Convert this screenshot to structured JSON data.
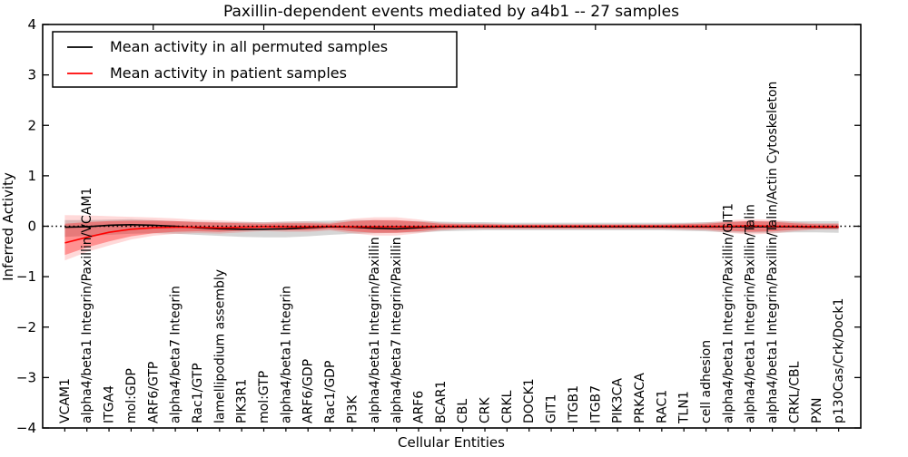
{
  "title": "Paxillin-dependent events mediated by a4b1 -- 27 samples",
  "axes": {
    "ylabel": "Inferred Activity",
    "xlabel": "Cellular Entities",
    "yticks": [
      4,
      3,
      2,
      1,
      0,
      -1,
      -2,
      -3,
      -4
    ]
  },
  "legend": {
    "items": [
      {
        "label": "Mean activity in all permuted samples",
        "color": "#000000"
      },
      {
        "label": "Mean activity in patient samples",
        "color": "#ff0000"
      }
    ]
  },
  "colors": {
    "permuted_line": "#000000",
    "patient_line": "#ff0000",
    "permuted_band": "rgba(0,0,0,0.16)",
    "patient_band_inner": "rgba(255,0,0,0.33)",
    "patient_band_outer": "rgba(255,0,0,0.15)",
    "zero_line": "#000000",
    "frame": "#000000"
  },
  "chart_data": {
    "type": "line",
    "title": "Paxillin-dependent events mediated by a4b1 -- 27 samples",
    "xlabel": "Cellular Entities",
    "ylabel": "Inferred Activity",
    "ylim": [
      -4,
      4
    ],
    "grid": false,
    "legend_position": "upper-left",
    "zero_line": true,
    "categories": [
      "VCAM1",
      "alpha4/beta1 Integrin/Paxillin/VCAM1",
      "ITGA4",
      "mol:GDP",
      "ARF6/GTP",
      "alpha4/beta7 Integrin",
      "Rac1/GTP",
      "lamellipodium assembly",
      "PIK3R1",
      "mol:GTP",
      "alpha4/beta1 Integrin",
      "ARF6/GDP",
      "Rac1/GDP",
      "PI3K",
      "alpha4/beta1 Integrin/Paxillin",
      "alpha4/beta7 Integrin/Paxillin",
      "ARF6",
      "BCAR1",
      "CBL",
      "CRK",
      "CRKL",
      "DOCK1",
      "GIT1",
      "ITGB1",
      "ITGB7",
      "PIK3CA",
      "PRKACA",
      "RAC1",
      "TLN1",
      "cell adhesion",
      "alpha4/beta1 Integrin/Paxillin/GIT1",
      "alpha4/beta1 Integrin/Paxillin/Talin",
      "alpha4/beta1 Integrin/Paxillin/Talin/Actin Cytoskeleton",
      "CRKL/CBL",
      "PXN",
      "p130Cas/Crk/Dock1"
    ],
    "series": [
      {
        "name": "Mean activity in all permuted samples",
        "color": "#000000",
        "values": [
          -0.02,
          -0.01,
          0.02,
          0.03,
          0.02,
          0.0,
          -0.03,
          -0.05,
          -0.06,
          -0.06,
          -0.05,
          -0.03,
          -0.01,
          -0.02,
          -0.04,
          -0.05,
          -0.03,
          -0.01,
          -0.01,
          -0.01,
          -0.01,
          -0.01,
          -0.01,
          -0.01,
          -0.01,
          -0.01,
          -0.01,
          -0.01,
          -0.01,
          -0.01,
          -0.01,
          -0.01,
          -0.01,
          -0.01,
          -0.02,
          -0.02
        ]
      },
      {
        "name": "Mean activity in patient samples",
        "color": "#ff0000",
        "values": [
          -0.33,
          -0.22,
          -0.12,
          -0.06,
          -0.03,
          -0.02,
          -0.02,
          -0.03,
          -0.02,
          -0.01,
          -0.01,
          -0.01,
          0.0,
          -0.01,
          -0.01,
          -0.01,
          -0.01,
          0.0,
          0.0,
          0.0,
          0.0,
          0.0,
          0.0,
          0.0,
          0.0,
          0.0,
          0.0,
          0.0,
          0.0,
          0.0,
          0.0,
          0.01,
          0.0,
          0.0,
          -0.01,
          -0.01
        ]
      }
    ],
    "bands": [
      {
        "name": "permuted-std-band",
        "lo": [
          -0.21,
          -0.19,
          -0.17,
          -0.15,
          -0.14,
          -0.15,
          -0.17,
          -0.19,
          -0.21,
          -0.22,
          -0.22,
          -0.2,
          -0.17,
          -0.15,
          -0.14,
          -0.13,
          -0.12,
          -0.1,
          -0.09,
          -0.08,
          -0.08,
          -0.08,
          -0.08,
          -0.08,
          -0.08,
          -0.08,
          -0.08,
          -0.08,
          -0.09,
          -0.1,
          -0.12,
          -0.13,
          -0.13,
          -0.12,
          -0.12,
          -0.13
        ],
        "hi": [
          0.12,
          0.12,
          0.13,
          0.14,
          0.12,
          0.1,
          0.09,
          0.08,
          0.08,
          0.08,
          0.09,
          0.1,
          0.11,
          0.12,
          0.12,
          0.11,
          0.1,
          0.09,
          0.08,
          0.08,
          0.07,
          0.07,
          0.07,
          0.07,
          0.07,
          0.07,
          0.07,
          0.07,
          0.07,
          0.08,
          0.09,
          0.1,
          0.1,
          0.1,
          0.1,
          0.1
        ]
      },
      {
        "name": "patient-std-band",
        "lo": [
          -0.57,
          -0.42,
          -0.3,
          -0.2,
          -0.14,
          -0.11,
          -0.1,
          -0.11,
          -0.09,
          -0.07,
          -0.08,
          -0.08,
          -0.06,
          -0.1,
          -0.13,
          -0.13,
          -0.1,
          -0.06,
          -0.04,
          -0.04,
          -0.04,
          -0.04,
          -0.04,
          -0.04,
          -0.04,
          -0.04,
          -0.04,
          -0.04,
          -0.05,
          -0.06,
          -0.09,
          -0.11,
          -0.1,
          -0.07,
          -0.05,
          -0.05
        ],
        "hi": [
          0.05,
          0.08,
          0.1,
          0.11,
          0.11,
          0.1,
          0.08,
          0.07,
          0.06,
          0.05,
          0.06,
          0.06,
          0.05,
          0.1,
          0.12,
          0.12,
          0.09,
          0.05,
          0.04,
          0.04,
          0.03,
          0.03,
          0.03,
          0.03,
          0.03,
          0.03,
          0.03,
          0.03,
          0.04,
          0.05,
          0.08,
          0.1,
          0.09,
          0.06,
          0.04,
          0.04
        ]
      }
    ]
  }
}
